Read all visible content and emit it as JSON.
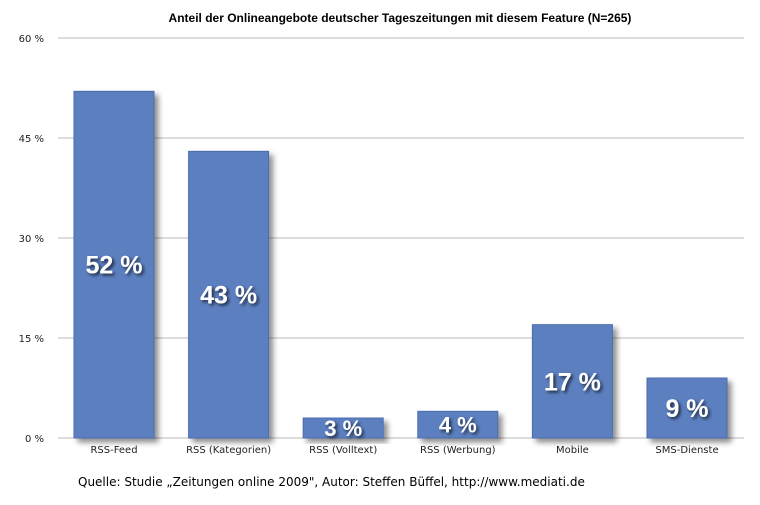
{
  "chart_data": {
    "type": "bar",
    "title": "Anteil der Onlineangebote deutscher Tageszeitungen mit diesem Feature (N=265)",
    "categories": [
      "RSS-Feed",
      "RSS (Kategorien)",
      "RSS (Volltext)",
      "RSS (Werbung)",
      "Mobile",
      "SMS-Dienste"
    ],
    "values": [
      52,
      43,
      3,
      4,
      17,
      9
    ],
    "data_labels": [
      "52 %",
      "43 %",
      "3 %",
      "4 %",
      "17 %",
      "9 %"
    ],
    "yticks": [
      0,
      15,
      30,
      45,
      60
    ],
    "ytick_labels": [
      "0 %",
      "15 %",
      "30 %",
      "45 %",
      "60 %"
    ],
    "ylim": [
      0,
      60
    ],
    "grid": true,
    "bar_color": "#5b7fc0",
    "source": "Quelle: Studie „Zeitungen online 2009\", Autor: Steffen Büffel, http://www.mediati.de"
  }
}
